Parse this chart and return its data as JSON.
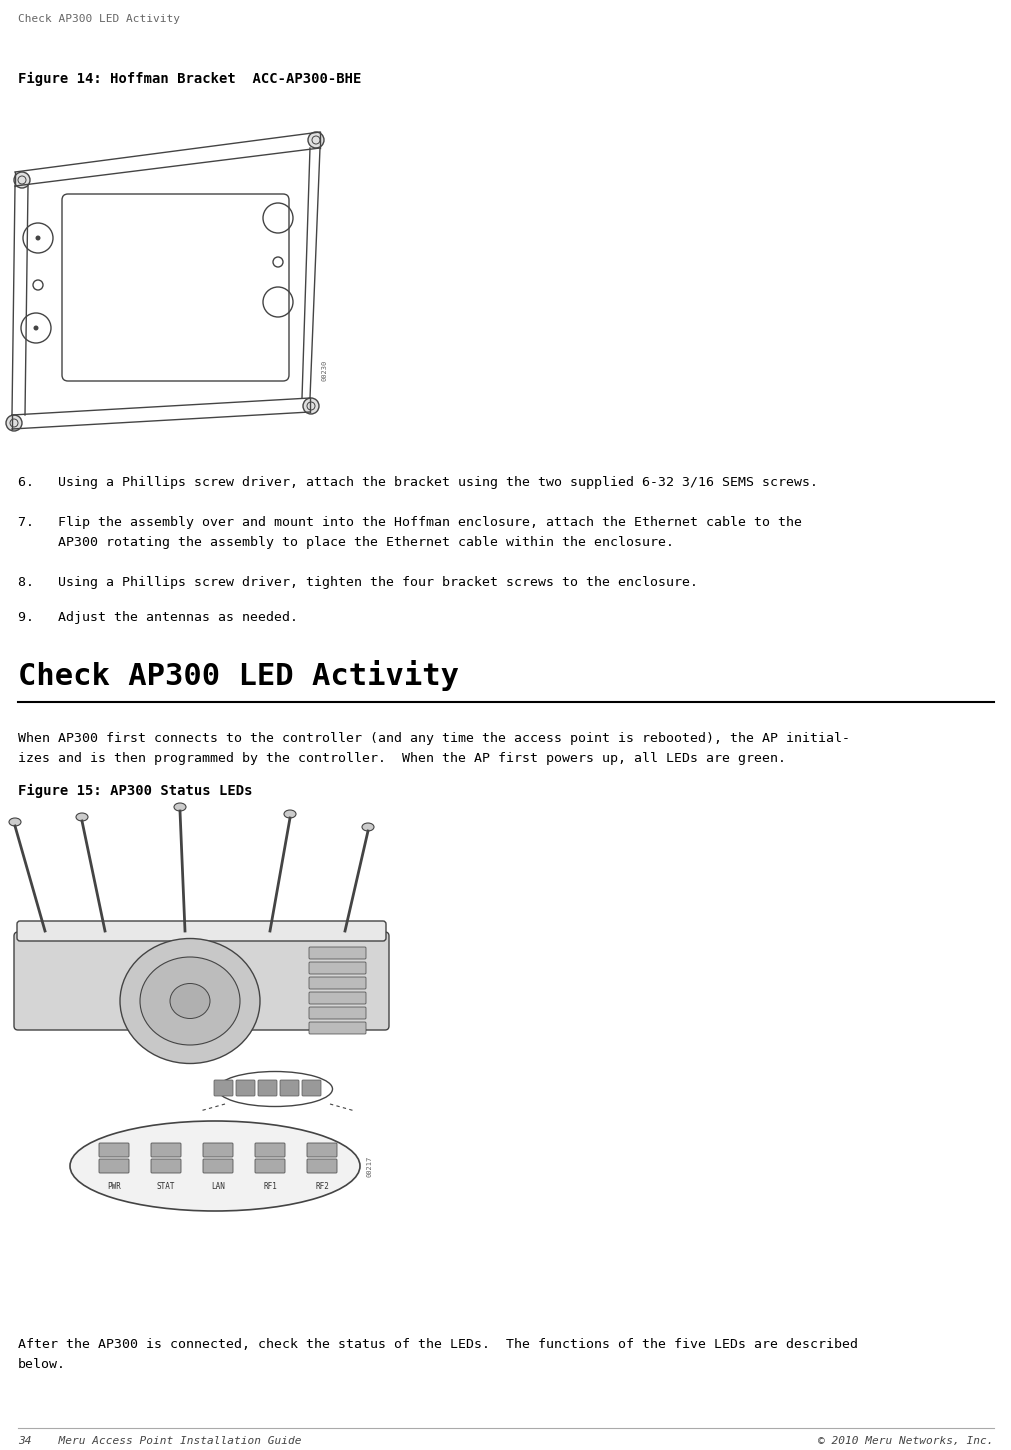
{
  "bg_color": "#ffffff",
  "header_text": "Check AP300 LED Activity",
  "footer_left": "34    Meru Access Point Installation Guide",
  "footer_right": "© 2010 Meru Networks, Inc.",
  "fig14_caption": "Figure 14: Hoffman Bracket  ACC-AP300-BHE",
  "step6": "6.   Using a Phillips screw driver, attach the bracket using the two supplied 6-32 3/16 SEMS screws.",
  "step7_l1": "7.   Flip the assembly over and mount into the Hoffman enclosure, attach the Ethernet cable to the",
  "step7_l2": "     AP300 rotating the assembly to place the Ethernet cable within the enclosure.",
  "step8": "8.   Using a Phillips screw driver, tighten the four bracket screws to the enclosure.",
  "step9": "9.   Adjust the antennas as needed.",
  "section_title": "Check AP300 LED Activity",
  "para1_l1": "When AP300 first connects to the controller (and any time the access point is rebooted), the AP initial-",
  "para1_l2": "izes and is then programmed by the controller.  When the AP first powers up, all LEDs are green.",
  "fig15_caption": "Figure 15: AP300 Status LEDs",
  "para2_l1": "After the AP300 is connected, check the status of the LEDs.  The functions of the five LEDs are described",
  "para2_l2": "below.",
  "text_color": "#000000",
  "header_color": "#666666",
  "footer_color": "#444444",
  "line_color": "#000000",
  "draw_color": "#444444"
}
